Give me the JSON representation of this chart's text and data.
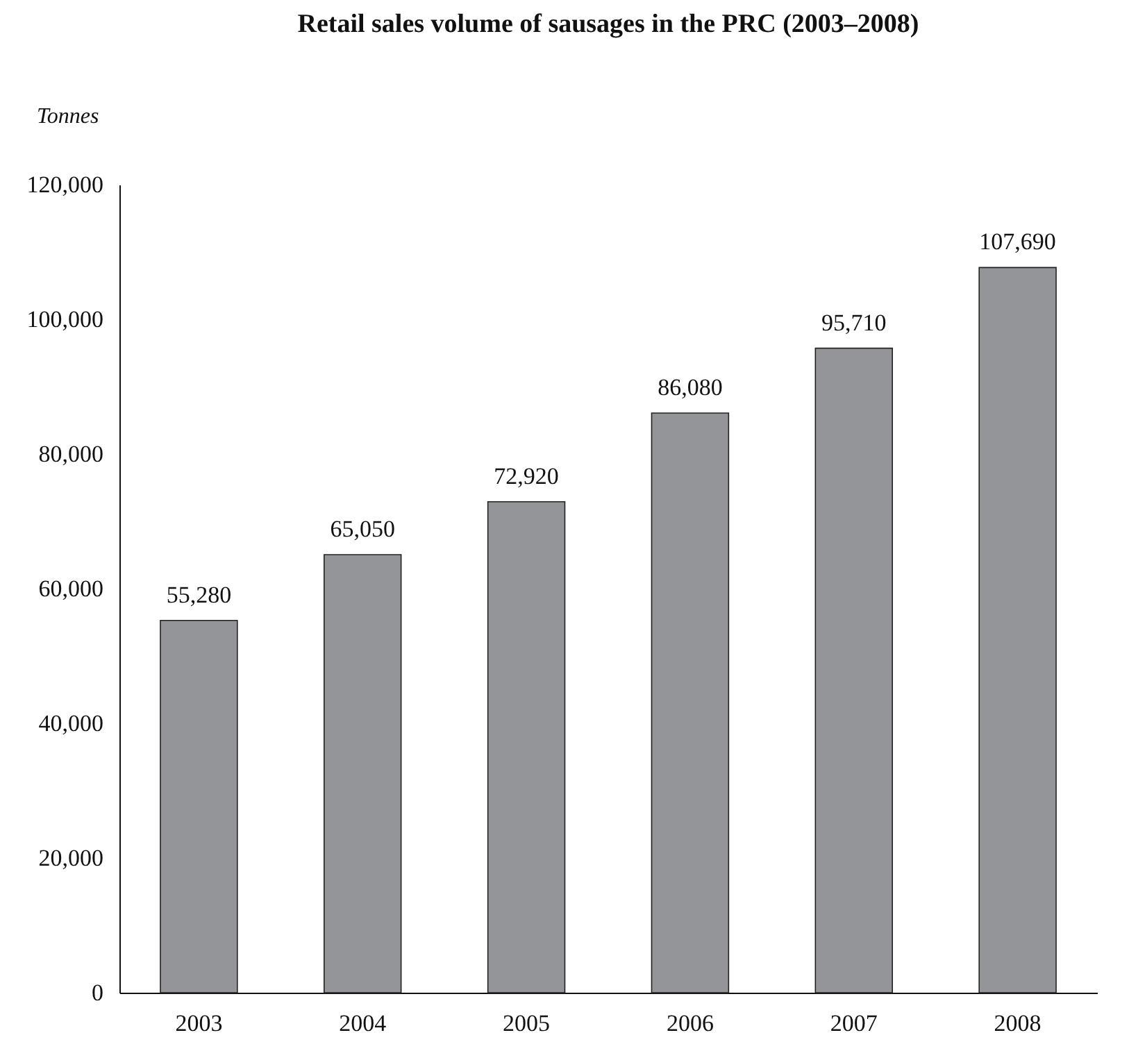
{
  "chart_data": {
    "type": "bar",
    "title": "Retail sales volume of sausages in the PRC (2003–2008)",
    "ylabel": "Tonnes",
    "categories": [
      "2003",
      "2004",
      "2005",
      "2006",
      "2007",
      "2008"
    ],
    "values": [
      55280,
      65050,
      72920,
      86080,
      95710,
      107690
    ],
    "value_labels": [
      "55,280",
      "65,050",
      "72,920",
      "86,080",
      "95,710",
      "107,690"
    ],
    "color": "#939598",
    "ylim": [
      0,
      120000
    ],
    "yticks": [
      0,
      {
        "value": 20000,
        "label": "20,000"
      },
      {
        "value": 40000,
        "label": "40,000"
      },
      {
        "value": 60000,
        "label": "60,000"
      },
      {
        "value": 80000,
        "label": "80,000"
      },
      {
        "value": 100000,
        "label": "100,000"
      },
      {
        "value": 120000,
        "label": "120,000"
      }
    ],
    "grid": false
  }
}
